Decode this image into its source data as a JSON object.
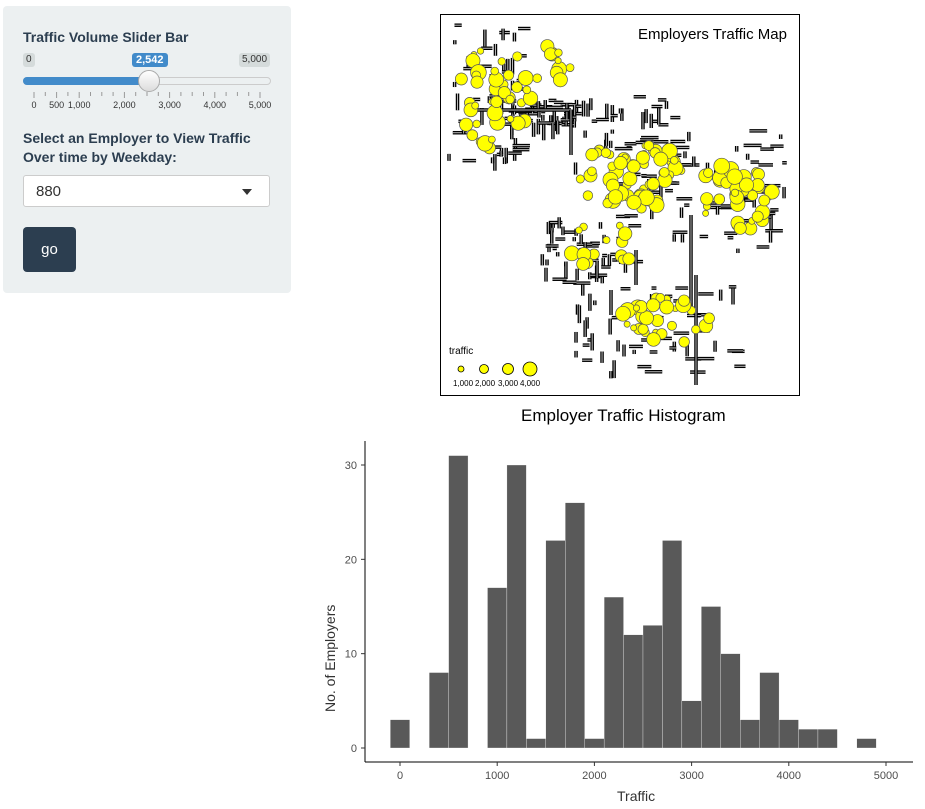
{
  "sidebar": {
    "slider": {
      "label": "Traffic Volume Slider Bar",
      "min_label": "0",
      "max_label": "5,000",
      "current_label": "2,542",
      "value": 2542,
      "min": 0,
      "max": 5000,
      "tick_labels": [
        "0",
        "500",
        "1,000",
        "2,000",
        "3,000",
        "4,000",
        "5,000"
      ],
      "accent_color": "#428bca"
    },
    "employer_select": {
      "label": "Select an Employer to View Traffic Over time by Weekday:",
      "value": "880"
    },
    "go_button": {
      "label": "go",
      "color": "#2c3e50"
    }
  },
  "map": {
    "title": "Employers Traffic Map",
    "legend": {
      "title": "traffic",
      "entries": [
        "1,000",
        "2,000",
        "3,000",
        "4,000"
      ]
    },
    "point_color": "#ffff00"
  },
  "chart_data": {
    "type": "bar",
    "title": "Employer Traffic Histogram",
    "xlabel": "Traffic",
    "ylabel": "No. of Employers",
    "bin_width": 200,
    "x": [
      0,
      400,
      600,
      1000,
      1200,
      1400,
      1600,
      1800,
      2000,
      2200,
      2400,
      2600,
      2800,
      3000,
      3200,
      3400,
      3600,
      3800,
      4000,
      4200,
      4400,
      4800
    ],
    "values": [
      3,
      8,
      31,
      17,
      30,
      1,
      22,
      26,
      1,
      16,
      12,
      13,
      22,
      5,
      15,
      10,
      3,
      8,
      3,
      2,
      2,
      1
    ],
    "xlim": [
      -200,
      5100
    ],
    "ylim": [
      0,
      33
    ],
    "x_ticks": [
      0,
      1000,
      2000,
      3000,
      4000,
      5000
    ],
    "y_ticks": [
      0,
      10,
      20,
      30
    ],
    "bar_color": "#595959",
    "grid": false
  }
}
